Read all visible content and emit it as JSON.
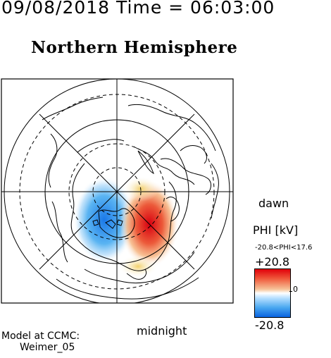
{
  "header": {
    "timestamp": "09/08/2018 Time = 06:03:00",
    "title": "Northern Hemisphere"
  },
  "map": {
    "label_dawn": "dawn",
    "label_midnight": "midnight"
  },
  "colorbar": {
    "title": "PHI [kV]",
    "range_text": "-20.8<PHI<17.6",
    "max_label": "+20.8",
    "zero_label": "0",
    "min_label": "-20.8",
    "colors": [
      "#e0000a",
      "#ffffff",
      "#0a64e0"
    ]
  },
  "footer": {
    "model_line1": "Model at CCMC:",
    "model_line2": "Weimer_05"
  }
}
